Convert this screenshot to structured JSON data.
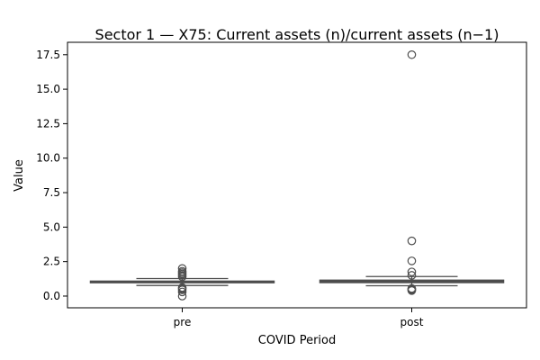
{
  "chart_data": {
    "type": "box",
    "title": "Sector 1 — X75: Current assets (n)/current assets (n−1)",
    "xlabel": "COVID Period",
    "ylabel": "Value",
    "ylim": [
      -0.85,
      18.4
    ],
    "yticks": [
      0.0,
      2.5,
      5.0,
      7.5,
      10.0,
      12.5,
      15.0,
      17.5
    ],
    "ytick_labels": [
      "0.0",
      "2.5",
      "5.0",
      "7.5",
      "10.0",
      "12.5",
      "15.0",
      "17.5"
    ],
    "categories": [
      "pre",
      "post"
    ],
    "box_color": "#4d4d4d",
    "boxes": [
      {
        "category": "pre",
        "whisker_low": 0.77,
        "q1": 0.97,
        "median": 1.02,
        "q3": 1.08,
        "whisker_high": 1.27,
        "outliers": [
          0.0,
          0.3,
          0.45,
          0.55,
          0.62,
          1.4,
          1.5,
          1.6,
          1.7,
          1.8,
          2.0
        ]
      },
      {
        "category": "post",
        "whisker_low": 0.75,
        "q1": 0.98,
        "median": 1.05,
        "q3": 1.15,
        "whisker_high": 1.42,
        "outliers": [
          0.4,
          0.45,
          0.5,
          0.55,
          1.5,
          1.75,
          2.55,
          4.0,
          17.5
        ]
      }
    ]
  }
}
